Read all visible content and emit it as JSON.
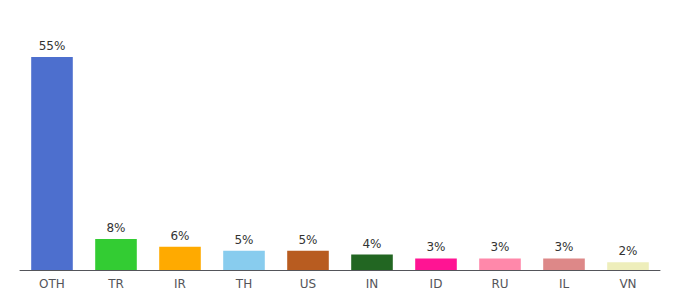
{
  "chart_data": {
    "type": "bar",
    "categories": [
      "OTH",
      "TR",
      "IR",
      "TH",
      "US",
      "IN",
      "ID",
      "RU",
      "IL",
      "VN"
    ],
    "values": [
      55,
      8,
      6,
      5,
      5,
      4,
      3,
      3,
      3,
      2
    ],
    "value_labels": [
      "55%",
      "8%",
      "6%",
      "5%",
      "5%",
      "4%",
      "3%",
      "3%",
      "3%",
      "2%"
    ],
    "colors": [
      "#4d6fce",
      "#33cc33",
      "#ffaa00",
      "#88ccee",
      "#b85c20",
      "#226622",
      "#ff1493",
      "#ff88aa",
      "#dd8888",
      "#eeeebb"
    ],
    "ylim": [
      0,
      62
    ],
    "data_labels": true,
    "tick_labels": "x",
    "grid": false
  }
}
